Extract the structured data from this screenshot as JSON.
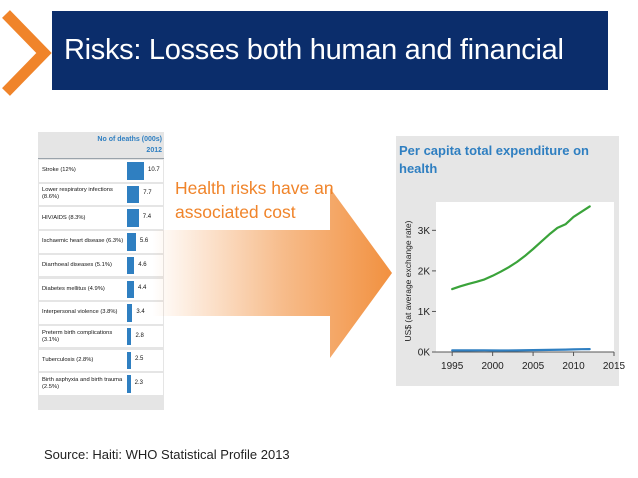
{
  "slide": {
    "title": "Risks: Losses both human and financial",
    "annotation_lines": [
      "Health risks have an",
      "associated cost"
    ],
    "source": "Source: Haiti: WHO Statistical Profile 2013",
    "accent_color": "#f0842a",
    "title_bg": "#0b2d6b",
    "chart_blue": "#2f7fc1",
    "line_green": "#3aa33a"
  },
  "chart_data": [
    {
      "type": "bar",
      "title": "No of deaths (000s)",
      "subtitle": "2012",
      "categories": [
        "Stroke (12%)",
        "Lower respiratory infections (8.6%)",
        "HIV/AIDS (8.3%)",
        "Ischaemic heart disease (6.3%)",
        "Diarrhoeal diseases (5.1%)",
        "Diabetes mellitus (4.9%)",
        "Interpersonal violence (3.8%)",
        "Preterm birth complications (3.1%)",
        "Tuberculosis (2.8%)",
        "Birth asphyxia and birth trauma (2.5%)"
      ],
      "values": [
        10.7,
        7.7,
        7.4,
        5.6,
        4.6,
        4.4,
        3.4,
        2.8,
        2.5,
        2.3
      ],
      "value_labels": [
        "10.7",
        "7.7",
        "7.4",
        "5.6",
        "4.6",
        "4.4",
        "3.4",
        "2.8",
        "2.5",
        "2.3"
      ],
      "orientation": "horizontal"
    },
    {
      "type": "line",
      "title": "Per capita total expenditure on health",
      "ylabel": "US$ (at average exchange rate)",
      "xlim": [
        1993,
        2015
      ],
      "ylim": [
        0,
        3600
      ],
      "xticks": [
        "1995",
        "2000",
        "2005",
        "2010",
        "2015"
      ],
      "yticks": [
        "0K",
        "1K",
        "2K",
        "3K"
      ],
      "series": [
        {
          "color": "#3aa33a",
          "x": [
            1995,
            1996,
            1997,
            1998,
            1999,
            2000,
            2001,
            2002,
            2003,
            2004,
            2005,
            2006,
            2007,
            2008,
            2009,
            2010,
            2011,
            2012
          ],
          "values": [
            1550,
            1620,
            1680,
            1730,
            1790,
            1880,
            1980,
            2090,
            2220,
            2370,
            2540,
            2720,
            2900,
            3060,
            3150,
            3330,
            3460,
            3590
          ]
        },
        {
          "color": "#2f7fc1",
          "x": [
            1995,
            1997,
            1999,
            2001,
            2003,
            2005,
            2007,
            2009,
            2010,
            2011,
            2012
          ],
          "values": [
            40,
            40,
            42,
            38,
            40,
            48,
            52,
            58,
            64,
            70,
            72
          ]
        }
      ]
    }
  ]
}
